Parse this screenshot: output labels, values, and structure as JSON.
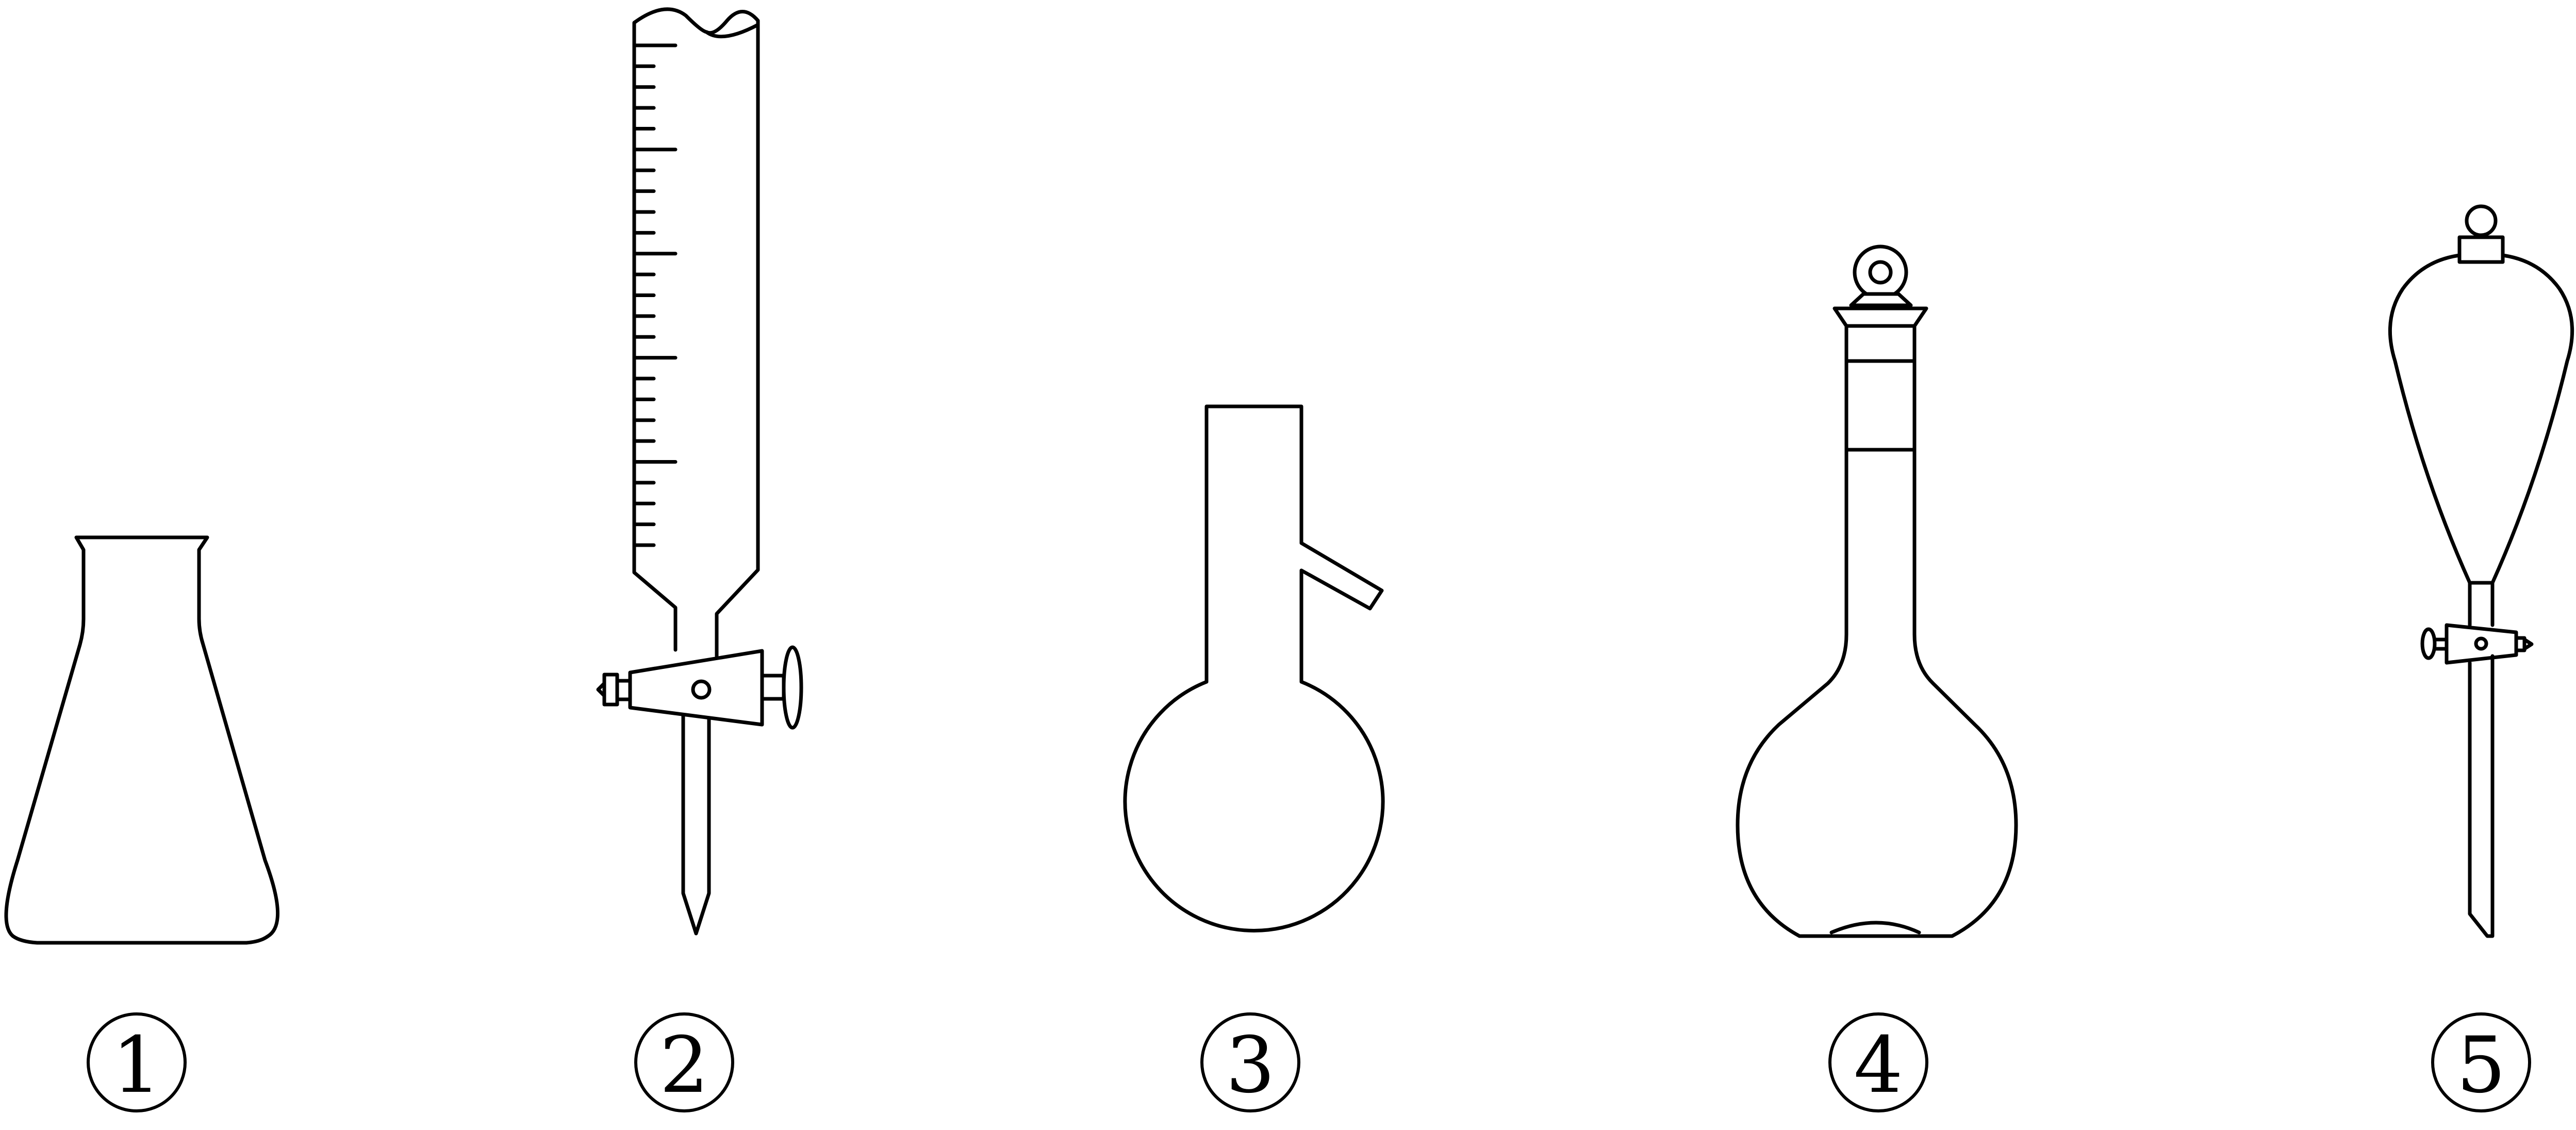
{
  "apparatus": [
    {
      "id": "erlenmeyer-flask",
      "label": "1"
    },
    {
      "id": "acid-burette",
      "label": "2"
    },
    {
      "id": "distillation-flask",
      "label": "3"
    },
    {
      "id": "volumetric-flask",
      "label": "4"
    },
    {
      "id": "separatory-funnel",
      "label": "5"
    }
  ],
  "style": {
    "line_color": "#000000",
    "background": "#ffffff"
  }
}
